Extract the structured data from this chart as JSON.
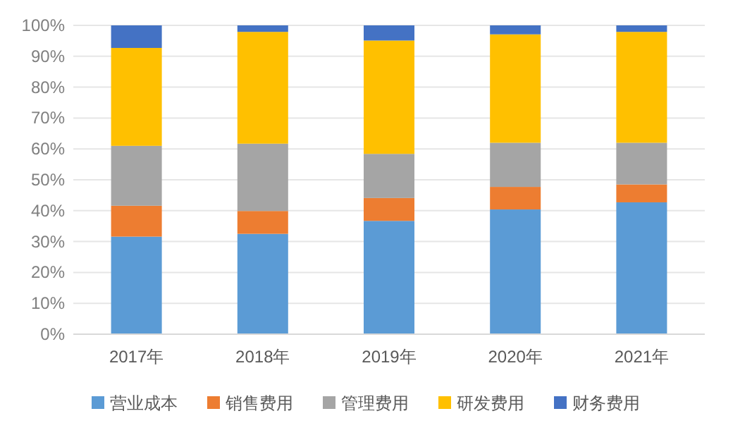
{
  "chart_data": {
    "type": "bar",
    "stacked": true,
    "categories": [
      "2017年",
      "2018年",
      "2019年",
      "2020年",
      "2021年"
    ],
    "series": [
      {
        "name": "营业成本",
        "color": "#5b9bd5",
        "values": [
          31.6,
          32.5,
          36.7,
          40.4,
          42.7
        ]
      },
      {
        "name": "销售费用",
        "color": "#ed7d31",
        "values": [
          10.0,
          7.4,
          7.4,
          7.3,
          5.8
        ]
      },
      {
        "name": "管理费用",
        "color": "#a5a5a5",
        "values": [
          19.4,
          21.8,
          14.3,
          14.3,
          13.5
        ]
      },
      {
        "name": "研发费用",
        "color": "#ffc000",
        "values": [
          31.7,
          36.2,
          36.7,
          35.1,
          35.9
        ]
      },
      {
        "name": "财务费用",
        "color": "#4472c4",
        "values": [
          7.3,
          2.1,
          4.9,
          2.9,
          2.1
        ]
      }
    ],
    "ylim": [
      0,
      100
    ],
    "yticks": [
      {
        "value": 0,
        "label": "0%"
      },
      {
        "value": 10,
        "label": "10%"
      },
      {
        "value": 20,
        "label": "20%"
      },
      {
        "value": 30,
        "label": "30%"
      },
      {
        "value": 40,
        "label": "40%"
      },
      {
        "value": 50,
        "label": "50%"
      },
      {
        "value": 60,
        "label": "60%"
      },
      {
        "value": 70,
        "label": "70%"
      },
      {
        "value": 80,
        "label": "80%"
      },
      {
        "value": 90,
        "label": "90%"
      },
      {
        "value": 100,
        "label": "100%"
      }
    ],
    "grid": "y",
    "legend": "bottom"
  }
}
